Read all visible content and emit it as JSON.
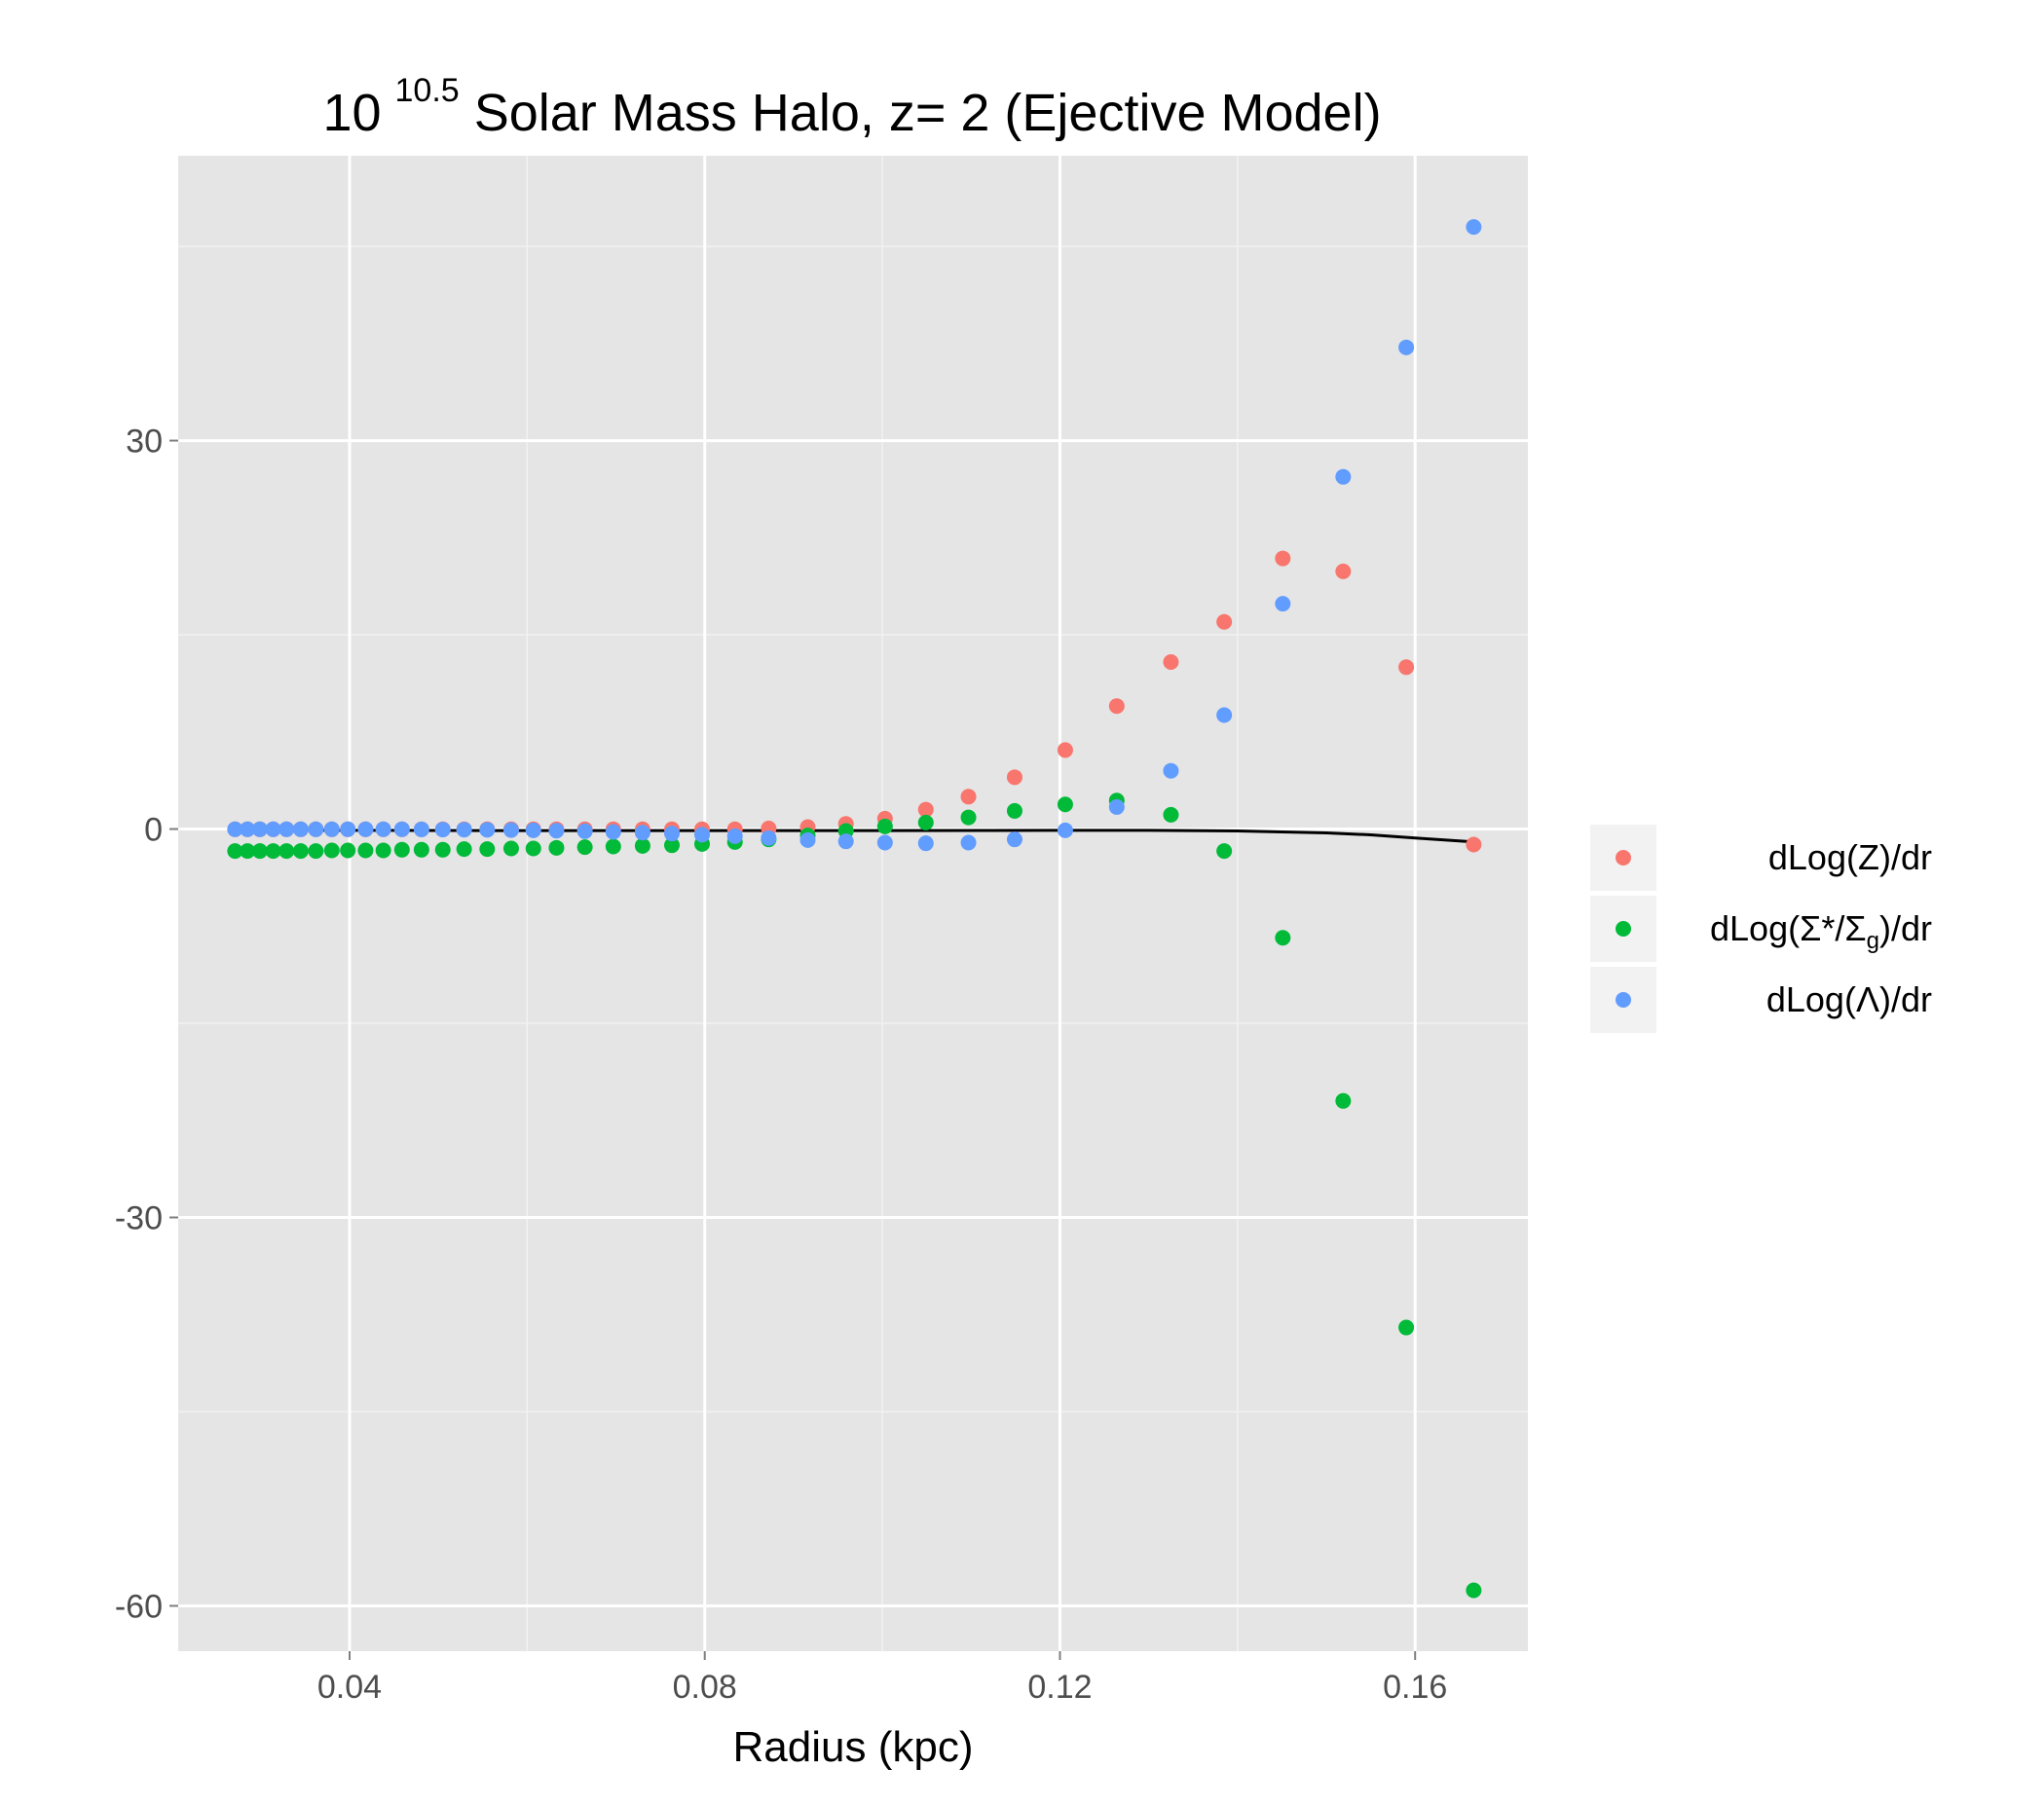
{
  "chart_data": {
    "type": "scatter",
    "title": {
      "base": "10",
      "exponent": "10.5",
      "rest": " Solar Mass Halo, z= 2 (Ejective Model)"
    },
    "xlabel": "Radius (kpc)",
    "ylabel": "",
    "xlim": [
      0.0207,
      0.1727
    ],
    "ylim": [
      -63.5,
      52.0
    ],
    "x_ticks": [
      {
        "value": 0.04,
        "label": "0.04"
      },
      {
        "value": 0.08,
        "label": "0.08"
      },
      {
        "value": 0.12,
        "label": "0.12"
      },
      {
        "value": 0.16,
        "label": "0.16"
      }
    ],
    "x_minor_ticks": [
      0.06,
      0.1,
      0.14
    ],
    "y_ticks": [
      {
        "value": 30,
        "label": "30"
      },
      {
        "value": 0,
        "label": "0"
      },
      {
        "value": -30,
        "label": "-30"
      },
      {
        "value": -60,
        "label": "-60"
      }
    ],
    "y_minor_ticks": [
      45,
      15,
      -15,
      -45
    ],
    "grid": true,
    "legend_position": "right",
    "x": [
      0.0271,
      0.0285,
      0.0299,
      0.0314,
      0.0329,
      0.0345,
      0.0362,
      0.038,
      0.0398,
      0.0418,
      0.0438,
      0.0459,
      0.0481,
      0.0505,
      0.0529,
      0.0555,
      0.0582,
      0.0607,
      0.0633,
      0.0665,
      0.0697,
      0.073,
      0.0763,
      0.0797,
      0.0834,
      0.0872,
      0.0916,
      0.0959,
      0.1003,
      0.1049,
      0.1097,
      0.1149,
      0.1206,
      0.1264,
      0.1325,
      0.1385,
      0.1451,
      0.1519,
      0.159,
      0.1666
    ],
    "series": [
      {
        "name": "dLog(Z)/dr",
        "color": "#F8766D",
        "y": [
          -0.02,
          -0.02,
          -0.02,
          -0.02,
          -0.02,
          -0.02,
          -0.02,
          -0.02,
          -0.02,
          -0.02,
          -0.02,
          -0.02,
          -0.02,
          -0.02,
          -0.02,
          -0.02,
          -0.02,
          -0.02,
          -0.02,
          -0.02,
          -0.02,
          -0.02,
          -0.02,
          -0.02,
          -0.02,
          0.05,
          0.15,
          0.4,
          0.8,
          1.5,
          2.5,
          4.0,
          6.1,
          9.5,
          12.9,
          16.0,
          20.9,
          19.9,
          12.5,
          -1.2
        ]
      },
      {
        "name": "dLog(Σ*/Σg)/dr",
        "color": "#00BA38",
        "y": [
          -1.7,
          -1.7,
          -1.7,
          -1.7,
          -1.7,
          -1.7,
          -1.7,
          -1.65,
          -1.65,
          -1.65,
          -1.65,
          -1.6,
          -1.6,
          -1.6,
          -1.55,
          -1.55,
          -1.5,
          -1.5,
          -1.45,
          -1.4,
          -1.35,
          -1.3,
          -1.25,
          -1.15,
          -1.0,
          -0.8,
          -0.5,
          -0.15,
          0.2,
          0.5,
          0.9,
          1.4,
          1.9,
          2.2,
          1.1,
          -1.7,
          -8.4,
          -21.0,
          -38.5,
          -58.8
        ]
      },
      {
        "name": "dLog(Λ)/dr",
        "color": "#619CFF",
        "y": [
          -0.02,
          -0.02,
          -0.02,
          -0.02,
          -0.02,
          -0.02,
          -0.02,
          -0.02,
          -0.02,
          -0.02,
          -0.02,
          -0.02,
          -0.03,
          -0.04,
          -0.05,
          -0.06,
          -0.08,
          -0.1,
          -0.13,
          -0.17,
          -0.22,
          -0.28,
          -0.35,
          -0.44,
          -0.55,
          -0.7,
          -0.85,
          -0.95,
          -1.05,
          -1.1,
          -1.05,
          -0.8,
          -0.1,
          1.7,
          4.5,
          8.8,
          17.4,
          27.2,
          37.2,
          46.5
        ]
      }
    ],
    "line": {
      "color": "#000000",
      "x": [
        0.0271,
        0.04,
        0.06,
        0.08,
        0.1,
        0.12,
        0.13,
        0.14,
        0.15,
        0.155,
        0.16,
        0.1666
      ],
      "y": [
        -0.05,
        -0.1,
        -0.12,
        -0.12,
        -0.12,
        -0.1,
        -0.1,
        -0.15,
        -0.3,
        -0.45,
        -0.7,
        -1.0
      ]
    }
  },
  "legend": {
    "items": [
      {
        "prefix": "dLog",
        "open": "(",
        "body": "Z",
        "sub": "",
        "close": ")",
        "suffix": "/dr"
      },
      {
        "prefix": "dLog",
        "open": "(",
        "body": "Σ*/Σ",
        "sub": "g",
        "close": ")",
        "suffix": "/dr"
      },
      {
        "prefix": "dLog",
        "open": "(",
        "body": "Λ",
        "sub": "",
        "close": ")",
        "suffix": "/dr"
      }
    ]
  }
}
